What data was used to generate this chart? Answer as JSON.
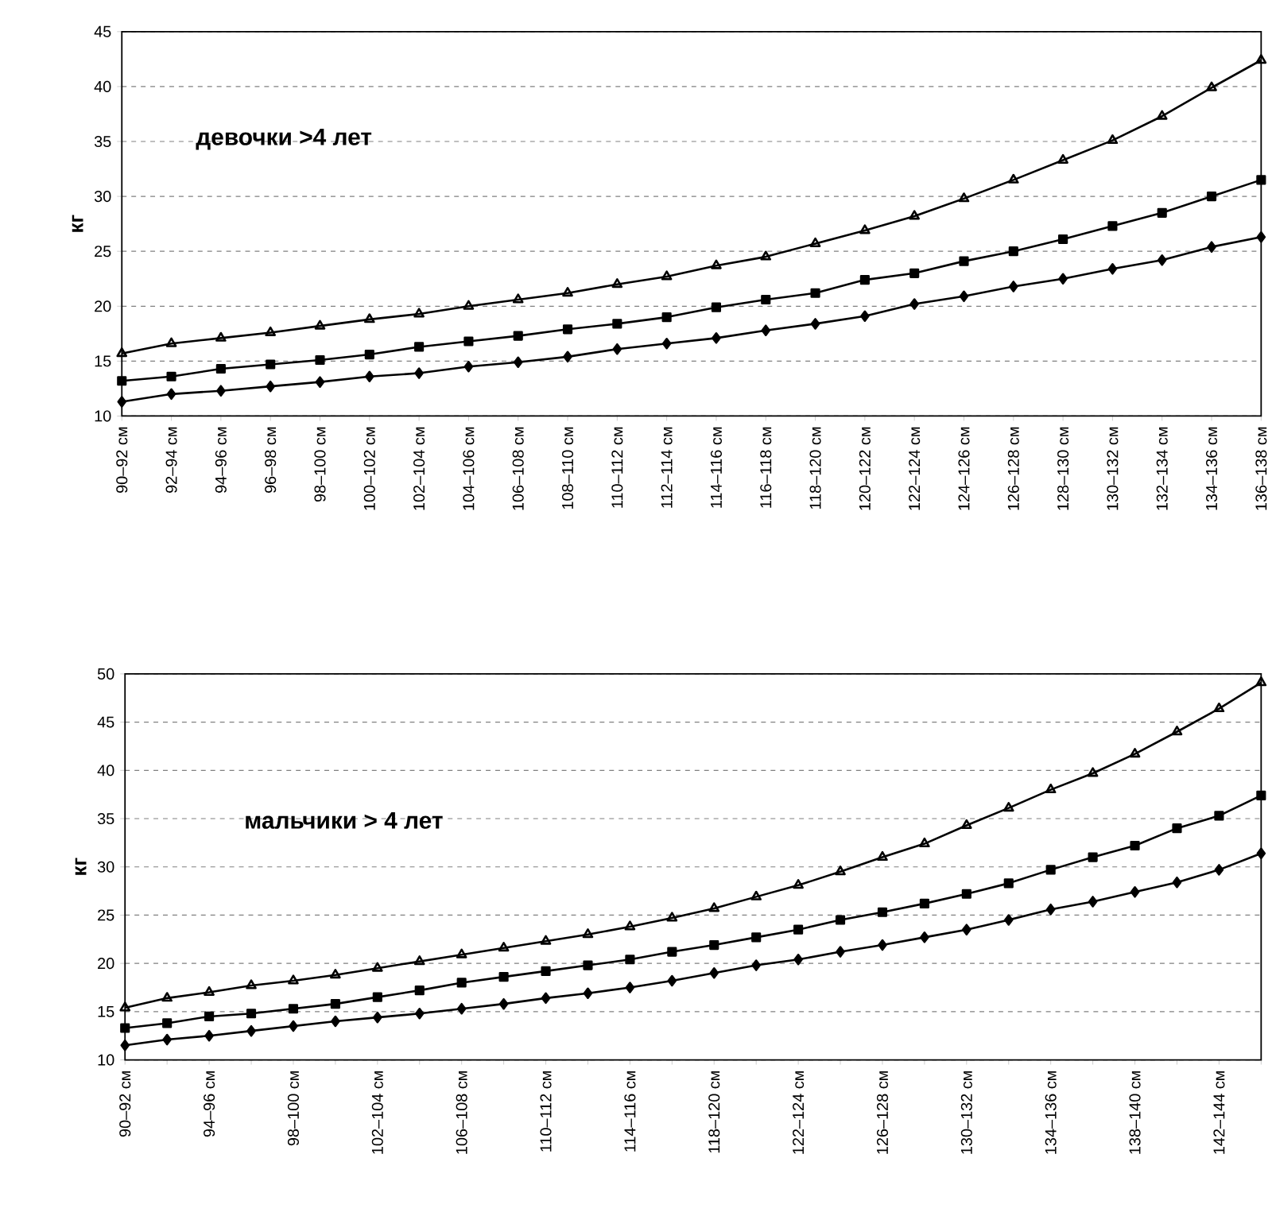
{
  "chart_data": [
    {
      "type": "line",
      "title": "девочки >4 лет",
      "ylabel": "кг",
      "categories": [
        "90–92 см",
        "92–94 см",
        "94–96 см",
        "96–98 см",
        "98–100 см",
        "100–102 см",
        "102–104 см",
        "104–106 см",
        "106–108 см",
        "108–110 см",
        "110–112 см",
        "112–114 см",
        "114–116 см",
        "116–118 см",
        "118–120 см",
        "120–122 см",
        "122–124 см",
        "124–126 см",
        "126–128 см",
        "128–130 см",
        "130–132 см",
        "132–134 см",
        "134–136 см",
        "136–138 см"
      ],
      "series": [
        {
          "color": "#000000",
          "marker": "triangle",
          "values": [
            15.7,
            16.6,
            17.1,
            17.6,
            18.2,
            18.8,
            19.3,
            20.0,
            20.6,
            21.2,
            22.0,
            22.7,
            23.7,
            24.5,
            25.7,
            26.9,
            28.2,
            29.8,
            31.5,
            33.3,
            35.1,
            37.3,
            39.9,
            42.4
          ]
        },
        {
          "color": "#000000",
          "marker": "square",
          "values": [
            13.2,
            13.6,
            14.3,
            14.7,
            15.1,
            15.6,
            16.3,
            16.8,
            17.3,
            17.9,
            18.4,
            19.0,
            19.9,
            20.6,
            21.2,
            22.4,
            23.0,
            24.1,
            25.0,
            26.1,
            27.3,
            28.5,
            30.0,
            31.5
          ]
        },
        {
          "color": "#000000",
          "marker": "diamond",
          "values": [
            11.3,
            12.0,
            12.3,
            12.7,
            13.1,
            13.6,
            13.9,
            14.5,
            14.9,
            15.4,
            16.1,
            16.6,
            17.1,
            17.8,
            18.4,
            19.1,
            20.2,
            20.9,
            21.8,
            22.5,
            23.4,
            24.2,
            25.4,
            26.3
          ]
        }
      ],
      "ylim": [
        10,
        45
      ],
      "yticks": [
        10,
        15,
        20,
        25,
        30,
        35,
        40,
        45
      ],
      "grid": "y"
    },
    {
      "type": "line",
      "title": "мальчики > 4 лет",
      "ylabel": "кг",
      "categories": [
        "90–92 см",
        null,
        "94–96 см",
        null,
        "98–100 см",
        null,
        "102–104 см",
        null,
        "106–108 см",
        null,
        "110–112 см",
        null,
        "114–116 см",
        null,
        "118–120 см",
        null,
        "122–124 см",
        null,
        "126–128 см",
        null,
        "130–132 см",
        null,
        "134–136 см",
        null,
        "138–140 см",
        null,
        "142–144 см",
        null
      ],
      "series": [
        {
          "color": "#000000",
          "marker": "triangle",
          "values": [
            15.4,
            16.4,
            17.0,
            17.7,
            18.2,
            18.8,
            19.5,
            20.2,
            20.9,
            21.6,
            22.3,
            23.0,
            23.8,
            24.7,
            25.7,
            26.9,
            28.1,
            29.5,
            31.0,
            32.4,
            34.3,
            36.1,
            38.0,
            39.7,
            41.7,
            44.0,
            46.4,
            49.1
          ]
        },
        {
          "color": "#000000",
          "marker": "square",
          "values": [
            13.3,
            13.8,
            14.5,
            14.8,
            15.3,
            15.8,
            16.5,
            17.2,
            18.0,
            18.6,
            19.2,
            19.8,
            20.4,
            21.2,
            21.9,
            22.7,
            23.5,
            24.5,
            25.3,
            26.2,
            27.2,
            28.3,
            29.7,
            31.0,
            32.2,
            34.0,
            35.3,
            37.4
          ]
        },
        {
          "color": "#000000",
          "marker": "diamond",
          "values": [
            11.5,
            12.1,
            12.5,
            13.0,
            13.5,
            14.0,
            14.4,
            14.8,
            15.3,
            15.8,
            16.4,
            16.9,
            17.5,
            18.2,
            19.0,
            19.8,
            20.4,
            21.2,
            21.9,
            22.7,
            23.5,
            24.5,
            25.6,
            26.4,
            27.4,
            28.4,
            29.7,
            31.4
          ]
        }
      ],
      "ylim": [
        10,
        50
      ],
      "yticks": [
        10,
        15,
        20,
        25,
        30,
        35,
        40,
        45,
        50
      ],
      "grid": "y"
    }
  ]
}
